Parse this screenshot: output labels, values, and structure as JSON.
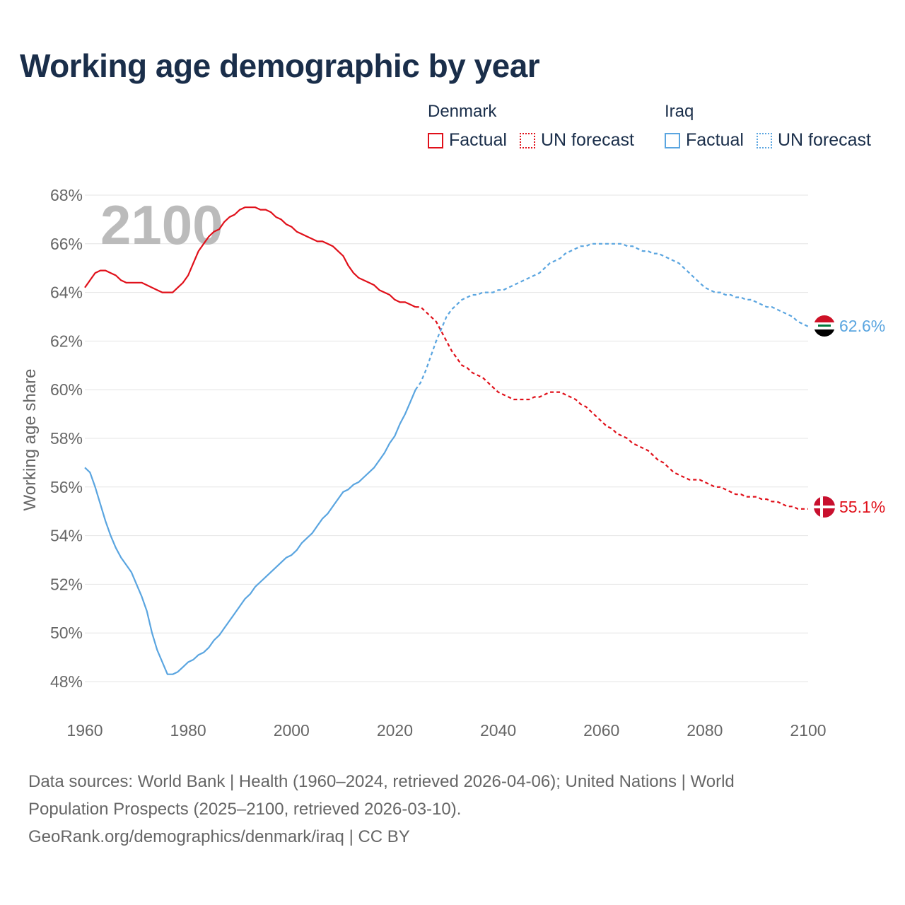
{
  "title": "Working age demographic by year",
  "legend": {
    "denmark": {
      "name": "Denmark",
      "factual": "Factual",
      "forecast": "UN forecast"
    },
    "iraq": {
      "name": "Iraq",
      "factual": "Factual",
      "forecast": "UN forecast"
    }
  },
  "colors": {
    "denmark": "#e0101a",
    "iraq": "#5aa5e0",
    "grid": "#e4e4e4",
    "axis_text": "#666666",
    "year_label": "#bbbbbb"
  },
  "footer": {
    "line1": "Data sources: World Bank | Health (1960–2024, retrieved 2026-04-06); United Nations | World",
    "line2": "Population Prospects (2025–2100, retrieved 2026-03-10).",
    "line3": "GeoRank.org/demographics/denmark/iraq | CC BY"
  },
  "chart_data": {
    "type": "line",
    "ylabel": "Working age share",
    "xlabel": "",
    "xlim": [
      1960,
      2100
    ],
    "ylim": [
      47,
      68.5
    ],
    "xticks": [
      "1960",
      "1980",
      "2000",
      "2020",
      "2040",
      "2060",
      "2080",
      "2100"
    ],
    "yticks": [
      "48%",
      "50%",
      "52%",
      "54%",
      "56%",
      "58%",
      "60%",
      "62%",
      "64%",
      "66%",
      "68%"
    ],
    "year_label": "2100",
    "series": [
      {
        "name": "Denmark",
        "end_label": "55.1%",
        "factual": [
          [
            1960,
            64.2
          ],
          [
            1961,
            64.5
          ],
          [
            1962,
            64.8
          ],
          [
            1963,
            64.9
          ],
          [
            1964,
            64.9
          ],
          [
            1965,
            64.8
          ],
          [
            1966,
            64.7
          ],
          [
            1967,
            64.5
          ],
          [
            1968,
            64.4
          ],
          [
            1970,
            64.4
          ],
          [
            1971,
            64.4
          ],
          [
            1972,
            64.3
          ],
          [
            1973,
            64.2
          ],
          [
            1974,
            64.1
          ],
          [
            1975,
            64.0
          ],
          [
            1976,
            64.0
          ],
          [
            1977,
            64.0
          ],
          [
            1978,
            64.2
          ],
          [
            1979,
            64.4
          ],
          [
            1980,
            64.7
          ],
          [
            1981,
            65.2
          ],
          [
            1982,
            65.7
          ],
          [
            1983,
            66.0
          ],
          [
            1984,
            66.3
          ],
          [
            1985,
            66.5
          ],
          [
            1986,
            66.6
          ],
          [
            1987,
            66.9
          ],
          [
            1988,
            67.1
          ],
          [
            1989,
            67.2
          ],
          [
            1990,
            67.4
          ],
          [
            1991,
            67.5
          ],
          [
            1992,
            67.5
          ],
          [
            1993,
            67.5
          ],
          [
            1994,
            67.4
          ],
          [
            1995,
            67.4
          ],
          [
            1996,
            67.3
          ],
          [
            1997,
            67.1
          ],
          [
            1998,
            67.0
          ],
          [
            1999,
            66.8
          ],
          [
            2000,
            66.7
          ],
          [
            2001,
            66.5
          ],
          [
            2002,
            66.4
          ],
          [
            2003,
            66.3
          ],
          [
            2004,
            66.2
          ],
          [
            2005,
            66.1
          ],
          [
            2006,
            66.1
          ],
          [
            2007,
            66.0
          ],
          [
            2008,
            65.9
          ],
          [
            2009,
            65.7
          ],
          [
            2010,
            65.5
          ],
          [
            2011,
            65.1
          ],
          [
            2012,
            64.8
          ],
          [
            2013,
            64.6
          ],
          [
            2014,
            64.5
          ],
          [
            2015,
            64.4
          ],
          [
            2016,
            64.3
          ],
          [
            2017,
            64.1
          ],
          [
            2018,
            64.0
          ],
          [
            2019,
            63.9
          ],
          [
            2020,
            63.7
          ],
          [
            2021,
            63.6
          ],
          [
            2022,
            63.6
          ],
          [
            2023,
            63.5
          ],
          [
            2024,
            63.4
          ]
        ],
        "forecast": [
          [
            2024,
            63.4
          ],
          [
            2025,
            63.4
          ],
          [
            2026,
            63.2
          ],
          [
            2027,
            63.0
          ],
          [
            2028,
            62.8
          ],
          [
            2029,
            62.4
          ],
          [
            2030,
            62.0
          ],
          [
            2031,
            61.6
          ],
          [
            2032,
            61.3
          ],
          [
            2033,
            61.0
          ],
          [
            2034,
            60.9
          ],
          [
            2035,
            60.7
          ],
          [
            2036,
            60.6
          ],
          [
            2037,
            60.5
          ],
          [
            2038,
            60.3
          ],
          [
            2039,
            60.1
          ],
          [
            2040,
            59.9
          ],
          [
            2041,
            59.8
          ],
          [
            2042,
            59.7
          ],
          [
            2043,
            59.6
          ],
          [
            2045,
            59.6
          ],
          [
            2046,
            59.6
          ],
          [
            2047,
            59.7
          ],
          [
            2048,
            59.7
          ],
          [
            2049,
            59.8
          ],
          [
            2050,
            59.9
          ],
          [
            2052,
            59.9
          ],
          [
            2053,
            59.8
          ],
          [
            2054,
            59.7
          ],
          [
            2055,
            59.6
          ],
          [
            2056,
            59.4
          ],
          [
            2057,
            59.3
          ],
          [
            2058,
            59.1
          ],
          [
            2059,
            58.9
          ],
          [
            2060,
            58.7
          ],
          [
            2061,
            58.5
          ],
          [
            2062,
            58.4
          ],
          [
            2063,
            58.2
          ],
          [
            2064,
            58.1
          ],
          [
            2065,
            58.0
          ],
          [
            2066,
            57.8
          ],
          [
            2067,
            57.7
          ],
          [
            2068,
            57.6
          ],
          [
            2069,
            57.5
          ],
          [
            2070,
            57.3
          ],
          [
            2071,
            57.1
          ],
          [
            2072,
            57.0
          ],
          [
            2073,
            56.8
          ],
          [
            2074,
            56.6
          ],
          [
            2075,
            56.5
          ],
          [
            2076,
            56.4
          ],
          [
            2077,
            56.3
          ],
          [
            2079,
            56.3
          ],
          [
            2080,
            56.2
          ],
          [
            2081,
            56.1
          ],
          [
            2082,
            56.0
          ],
          [
            2083,
            56.0
          ],
          [
            2084,
            55.9
          ],
          [
            2085,
            55.8
          ],
          [
            2086,
            55.7
          ],
          [
            2087,
            55.7
          ],
          [
            2088,
            55.6
          ],
          [
            2090,
            55.6
          ],
          [
            2091,
            55.5
          ],
          [
            2092,
            55.5
          ],
          [
            2093,
            55.4
          ],
          [
            2094,
            55.4
          ],
          [
            2095,
            55.3
          ],
          [
            2096,
            55.2
          ],
          [
            2097,
            55.2
          ],
          [
            2098,
            55.1
          ],
          [
            2100,
            55.1
          ]
        ]
      },
      {
        "name": "Iraq",
        "end_label": "62.6%",
        "factual": [
          [
            1960,
            56.8
          ],
          [
            1961,
            56.6
          ],
          [
            1962,
            56.0
          ],
          [
            1963,
            55.3
          ],
          [
            1964,
            54.6
          ],
          [
            1965,
            54.0
          ],
          [
            1966,
            53.5
          ],
          [
            1967,
            53.1
          ],
          [
            1968,
            52.8
          ],
          [
            1969,
            52.5
          ],
          [
            1970,
            52.0
          ],
          [
            1971,
            51.5
          ],
          [
            1972,
            50.9
          ],
          [
            1973,
            50.0
          ],
          [
            1974,
            49.3
          ],
          [
            1975,
            48.8
          ],
          [
            1976,
            48.3
          ],
          [
            1977,
            48.3
          ],
          [
            1978,
            48.4
          ],
          [
            1979,
            48.6
          ],
          [
            1980,
            48.8
          ],
          [
            1981,
            48.9
          ],
          [
            1982,
            49.1
          ],
          [
            1983,
            49.2
          ],
          [
            1984,
            49.4
          ],
          [
            1985,
            49.7
          ],
          [
            1986,
            49.9
          ],
          [
            1987,
            50.2
          ],
          [
            1988,
            50.5
          ],
          [
            1989,
            50.8
          ],
          [
            1990,
            51.1
          ],
          [
            1991,
            51.4
          ],
          [
            1992,
            51.6
          ],
          [
            1993,
            51.9
          ],
          [
            1994,
            52.1
          ],
          [
            1995,
            52.3
          ],
          [
            1996,
            52.5
          ],
          [
            1997,
            52.7
          ],
          [
            1998,
            52.9
          ],
          [
            1999,
            53.1
          ],
          [
            2000,
            53.2
          ],
          [
            2001,
            53.4
          ],
          [
            2002,
            53.7
          ],
          [
            2003,
            53.9
          ],
          [
            2004,
            54.1
          ],
          [
            2005,
            54.4
          ],
          [
            2006,
            54.7
          ],
          [
            2007,
            54.9
          ],
          [
            2008,
            55.2
          ],
          [
            2009,
            55.5
          ],
          [
            2010,
            55.8
          ],
          [
            2011,
            55.9
          ],
          [
            2012,
            56.1
          ],
          [
            2013,
            56.2
          ],
          [
            2014,
            56.4
          ],
          [
            2015,
            56.6
          ],
          [
            2016,
            56.8
          ],
          [
            2017,
            57.1
          ],
          [
            2018,
            57.4
          ],
          [
            2019,
            57.8
          ],
          [
            2020,
            58.1
          ],
          [
            2021,
            58.6
          ],
          [
            2022,
            59.0
          ],
          [
            2023,
            59.5
          ],
          [
            2024,
            60.0
          ]
        ],
        "forecast": [
          [
            2024,
            60.0
          ],
          [
            2025,
            60.3
          ],
          [
            2026,
            60.8
          ],
          [
            2027,
            61.4
          ],
          [
            2028,
            62.0
          ],
          [
            2029,
            62.5
          ],
          [
            2030,
            63.0
          ],
          [
            2031,
            63.3
          ],
          [
            2032,
            63.5
          ],
          [
            2033,
            63.7
          ],
          [
            2034,
            63.8
          ],
          [
            2035,
            63.9
          ],
          [
            2036,
            63.9
          ],
          [
            2037,
            64.0
          ],
          [
            2038,
            64.0
          ],
          [
            2039,
            64.0
          ],
          [
            2040,
            64.1
          ],
          [
            2041,
            64.1
          ],
          [
            2042,
            64.2
          ],
          [
            2043,
            64.3
          ],
          [
            2044,
            64.4
          ],
          [
            2045,
            64.5
          ],
          [
            2046,
            64.6
          ],
          [
            2047,
            64.7
          ],
          [
            2048,
            64.8
          ],
          [
            2049,
            65.0
          ],
          [
            2050,
            65.2
          ],
          [
            2051,
            65.3
          ],
          [
            2052,
            65.4
          ],
          [
            2053,
            65.6
          ],
          [
            2054,
            65.7
          ],
          [
            2055,
            65.8
          ],
          [
            2056,
            65.9
          ],
          [
            2057,
            65.9
          ],
          [
            2058,
            66.0
          ],
          [
            2059,
            66.0
          ],
          [
            2064,
            66.0
          ],
          [
            2065,
            65.9
          ],
          [
            2066,
            65.9
          ],
          [
            2067,
            65.8
          ],
          [
            2068,
            65.7
          ],
          [
            2069,
            65.7
          ],
          [
            2070,
            65.6
          ],
          [
            2071,
            65.6
          ],
          [
            2072,
            65.5
          ],
          [
            2073,
            65.4
          ],
          [
            2074,
            65.3
          ],
          [
            2075,
            65.2
          ],
          [
            2076,
            65.0
          ],
          [
            2077,
            64.8
          ],
          [
            2078,
            64.6
          ],
          [
            2079,
            64.4
          ],
          [
            2080,
            64.2
          ],
          [
            2081,
            64.1
          ],
          [
            2082,
            64.0
          ],
          [
            2083,
            64.0
          ],
          [
            2084,
            63.9
          ],
          [
            2085,
            63.9
          ],
          [
            2086,
            63.8
          ],
          [
            2087,
            63.8
          ],
          [
            2088,
            63.7
          ],
          [
            2089,
            63.7
          ],
          [
            2090,
            63.6
          ],
          [
            2091,
            63.5
          ],
          [
            2092,
            63.4
          ],
          [
            2093,
            63.4
          ],
          [
            2094,
            63.3
          ],
          [
            2095,
            63.2
          ],
          [
            2096,
            63.1
          ],
          [
            2097,
            63.0
          ],
          [
            2098,
            62.8
          ],
          [
            2099,
            62.7
          ],
          [
            2100,
            62.6
          ]
        ]
      }
    ]
  }
}
